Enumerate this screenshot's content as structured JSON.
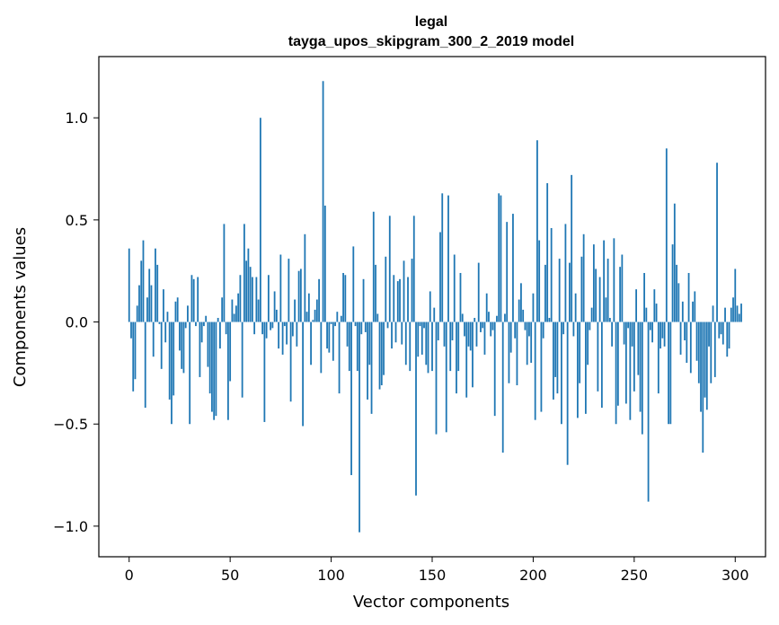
{
  "chart_data": {
    "type": "bar",
    "title": [
      "legal",
      "tayga_upos_skipgram_300_2_2019 model"
    ],
    "xlabel": "Vector components",
    "ylabel": "Components values",
    "xlim": [
      -15,
      315
    ],
    "ylim": [
      -1.15,
      1.3
    ],
    "xticks": [
      0,
      50,
      100,
      150,
      200,
      250,
      300
    ],
    "xtick_labels": [
      "0",
      "50",
      "100",
      "150",
      "200",
      "250",
      "300"
    ],
    "yticks": [
      -1.0,
      -0.5,
      0.0,
      0.5,
      1.0
    ],
    "ytick_labels": [
      "−1.0",
      "−0.5",
      "0.0",
      "0.5",
      "1.0"
    ],
    "grid": false,
    "bar_color": "#1f77b4",
    "x_start": 0,
    "values": [
      0.36,
      -0.08,
      -0.34,
      -0.28,
      0.08,
      0.18,
      0.3,
      0.4,
      -0.42,
      0.12,
      0.26,
      0.18,
      -0.17,
      0.36,
      0.28,
      -0.01,
      -0.23,
      0.16,
      -0.1,
      0.05,
      -0.38,
      -0.5,
      -0.36,
      0.1,
      0.12,
      -0.14,
      -0.23,
      -0.25,
      -0.03,
      0.08,
      -0.5,
      0.23,
      0.21,
      -0.02,
      0.22,
      -0.27,
      -0.1,
      -0.02,
      0.03,
      -0.22,
      -0.35,
      -0.44,
      -0.48,
      -0.46,
      0.02,
      -0.13,
      0.12,
      0.48,
      -0.06,
      -0.48,
      -0.29,
      0.11,
      0.04,
      0.08,
      0.14,
      0.23,
      -0.37,
      0.48,
      0.3,
      0.36,
      0.27,
      0.22,
      -0.06,
      0.22,
      0.11,
      1.0,
      -0.06,
      -0.49,
      -0.08,
      0.23,
      -0.04,
      -0.03,
      0.15,
      0.06,
      -0.13,
      0.33,
      -0.16,
      -0.02,
      -0.11,
      0.31,
      -0.39,
      -0.07,
      0.11,
      -0.12,
      0.25,
      0.26,
      -0.51,
      0.43,
      0.05,
      0.14,
      -0.21,
      0.01,
      0.06,
      0.11,
      0.21,
      -0.25,
      1.18,
      0.57,
      -0.13,
      -0.15,
      -0.01,
      -0.19,
      -0.02,
      0.05,
      -0.35,
      0.03,
      0.24,
      0.23,
      -0.12,
      -0.24,
      -0.75,
      0.37,
      -0.02,
      -0.24,
      -1.03,
      -0.06,
      0.21,
      -0.05,
      -0.38,
      -0.21,
      -0.45,
      0.54,
      0.28,
      0.04,
      -0.33,
      -0.31,
      -0.26,
      0.32,
      -0.03,
      0.52,
      -0.13,
      0.23,
      -0.1,
      0.2,
      0.21,
      -0.11,
      0.3,
      -0.21,
      0.22,
      -0.24,
      0.31,
      0.52,
      -0.85,
      -0.17,
      -0.02,
      -0.16,
      -0.03,
      -0.21,
      -0.25,
      0.15,
      -0.24,
      0.07,
      -0.55,
      -0.09,
      0.44,
      0.63,
      -0.12,
      -0.54,
      0.62,
      -0.24,
      -0.09,
      0.33,
      -0.35,
      -0.24,
      0.24,
      0.04,
      -0.07,
      -0.37,
      -0.12,
      -0.14,
      -0.32,
      0.02,
      -0.12,
      0.29,
      -0.05,
      -0.03,
      -0.16,
      0.14,
      0.05,
      -0.07,
      -0.04,
      -0.46,
      0.03,
      0.63,
      0.62,
      -0.64,
      0.04,
      0.49,
      -0.3,
      -0.15,
      0.53,
      -0.08,
      -0.31,
      0.11,
      0.19,
      0.06,
      -0.04,
      -0.21,
      -0.07,
      -0.2,
      0.14,
      -0.48,
      0.89,
      0.4,
      -0.44,
      -0.08,
      0.28,
      0.68,
      0.02,
      0.46,
      -0.38,
      -0.27,
      -0.35,
      0.31,
      -0.5,
      -0.06,
      0.48,
      -0.7,
      0.29,
      0.72,
      -0.07,
      0.14,
      -0.47,
      -0.3,
      0.32,
      0.43,
      -0.45,
      -0.21,
      -0.04,
      0.07,
      0.38,
      0.26,
      -0.34,
      0.22,
      -0.42,
      0.4,
      0.12,
      0.31,
      0.02,
      -0.12,
      0.41,
      -0.5,
      -0.41,
      0.27,
      0.33,
      -0.11,
      -0.4,
      -0.03,
      -0.48,
      -0.12,
      -0.34,
      0.16,
      -0.26,
      -0.44,
      -0.55,
      0.24,
      0.07,
      -0.88,
      -0.04,
      -0.1,
      0.16,
      0.09,
      -0.35,
      -0.13,
      -0.08,
      -0.12,
      0.85,
      -0.5,
      -0.5,
      0.38,
      0.58,
      0.28,
      0.19,
      -0.16,
      0.1,
      -0.09,
      -0.2,
      0.24,
      -0.25,
      0.1,
      0.15,
      -0.19,
      -0.3,
      -0.44,
      -0.64,
      -0.37,
      -0.43,
      -0.12,
      -0.3,
      0.08,
      -0.27,
      0.78,
      -0.08,
      -0.06,
      -0.11,
      0.07,
      -0.17,
      -0.13,
      0.07,
      0.12,
      0.26,
      0.08,
      0.04,
      0.09
    ]
  }
}
